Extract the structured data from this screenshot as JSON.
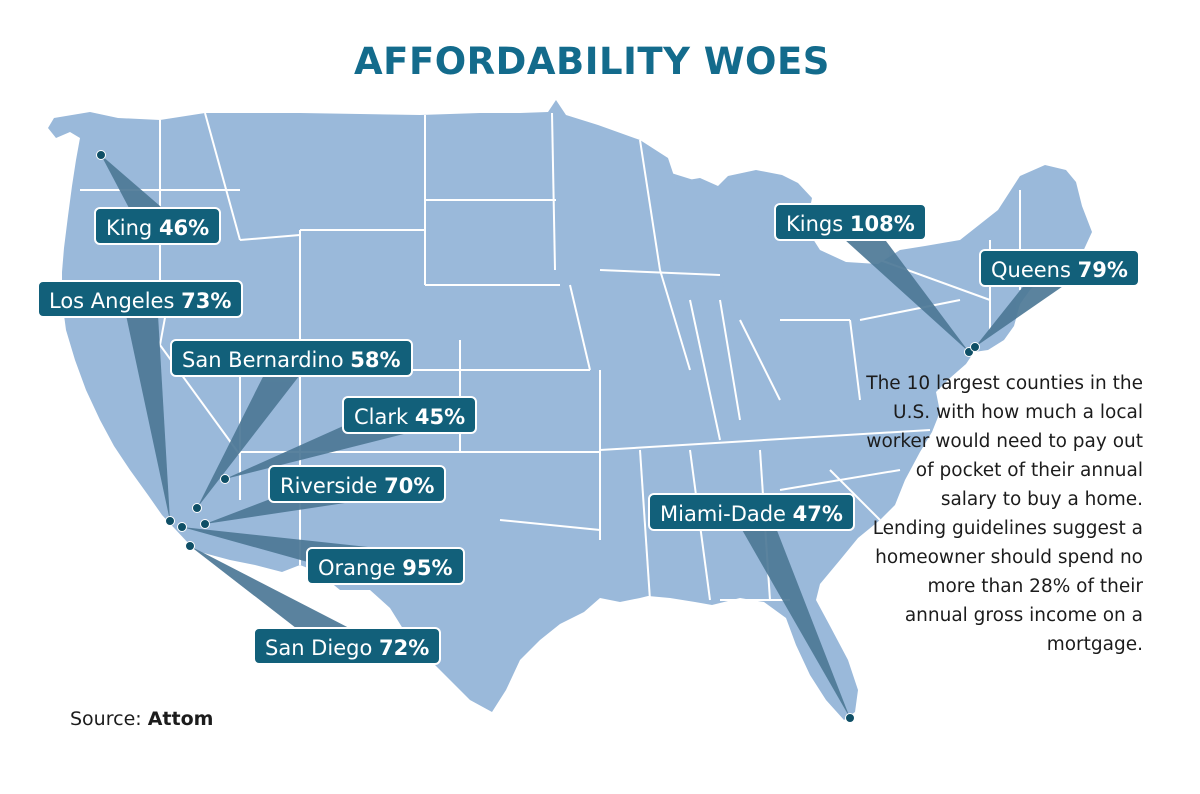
{
  "title": "AFFORDABILITY WOES",
  "description": "The 10 largest counties in the U.S. with how much a local worker would need to pay out of pocket of their annual salary to buy a home. Lending guidelines suggest a homeowner should spend no more than 28% of their annual gross income on a mortgage.",
  "source": {
    "label": "Source:",
    "name": "Attom"
  },
  "colors": {
    "title": "#136b8c",
    "land": "#9ab9da",
    "state_border": "#ffffff",
    "label_bg": "#12607a",
    "callout": "#4d7896",
    "marker": "#0f4f66"
  },
  "counties": [
    {
      "name": "King",
      "percent": "46%"
    },
    {
      "name": "Los Angeles",
      "percent": "73%"
    },
    {
      "name": "San Bernardino",
      "percent": "58%"
    },
    {
      "name": "Clark",
      "percent": "45%"
    },
    {
      "name": "Riverside",
      "percent": "70%"
    },
    {
      "name": "Orange",
      "percent": "95%"
    },
    {
      "name": "San Diego",
      "percent": "72%"
    },
    {
      "name": "Miami-Dade",
      "percent": "47%"
    },
    {
      "name": "Kings",
      "percent": "108%"
    },
    {
      "name": "Queens",
      "percent": "79%"
    }
  ]
}
